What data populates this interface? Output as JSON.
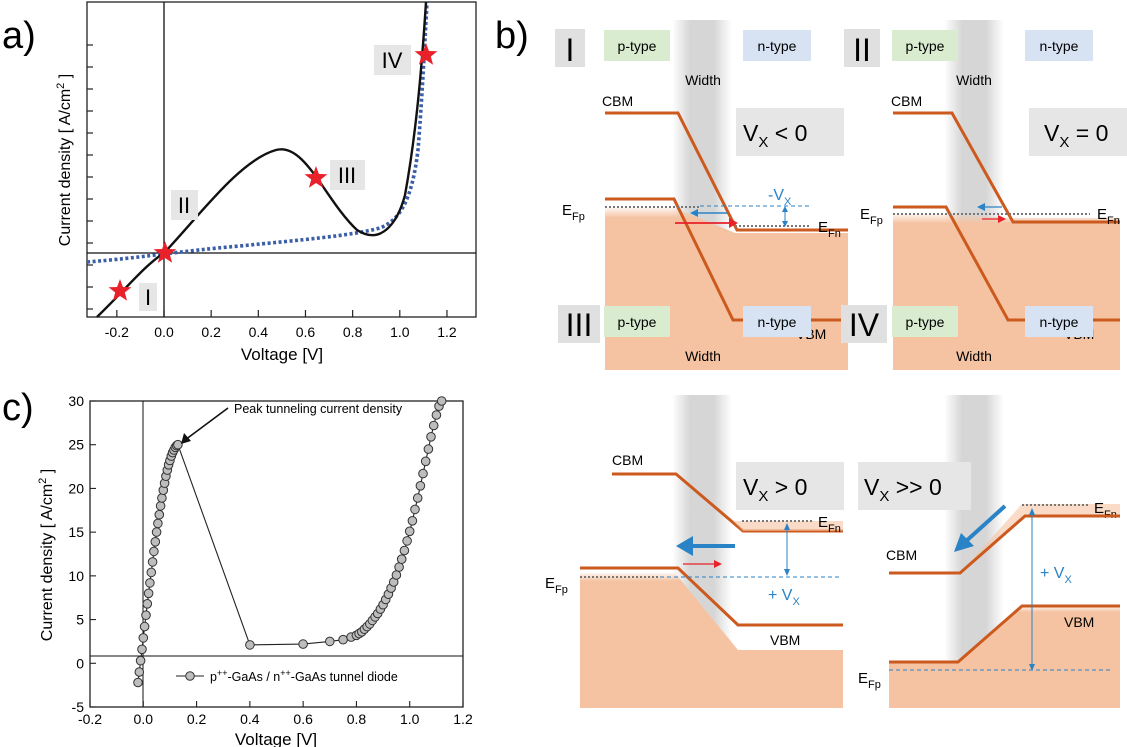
{
  "panel_letters": {
    "a": "a)",
    "b": "b)",
    "c": "c)"
  },
  "panel_a": {
    "ylabel": "Current density [ A/cm",
    "ylabel_sup": "2",
    "ylabel_end": " ]",
    "xlabel": "Voltage [V]",
    "xticks": [
      "-0.2",
      "0.0",
      "0.2",
      "0.4",
      "0.6",
      "0.8",
      "1.0",
      "1.2"
    ],
    "markers": [
      {
        "label": "I",
        "v": -0.17
      },
      {
        "label": "II",
        "v": 0.0
      },
      {
        "label": "III",
        "v": 0.58
      },
      {
        "label": "IV",
        "v": 1.0
      }
    ],
    "colors": {
      "curve": "#111111",
      "diode_curve": "#3b5ea8",
      "star": "#e8212a",
      "label_box": "#e6e6e6"
    }
  },
  "panel_c": {
    "ylabel": "Current density [ A/cm",
    "ylabel_sup": "2",
    "ylabel_end": " ]",
    "xlabel": "Voltage [V]",
    "annotation": "Peak tunneling current density",
    "legend": {
      "part1": "p",
      "sup1": "++",
      "part2": "-GaAs / n",
      "sup2": "++",
      "part3": "-GaAs tunnel diode"
    }
  },
  "chart_data": {
    "type": "scatter",
    "xlabel": "Voltage [V]",
    "ylabel": "Current density [ A/cm2 ]",
    "xlim": [
      -0.2,
      1.2
    ],
    "ylim": [
      -5,
      30
    ],
    "xticks": [
      "-0.2",
      "0.0",
      "0.2",
      "0.4",
      "0.6",
      "0.8",
      "1.0",
      "1.2"
    ],
    "yticks": [
      "-5",
      "0",
      "5",
      "10",
      "15",
      "20",
      "25",
      "30"
    ],
    "series": [
      {
        "name": "p++-GaAs / n++-GaAs tunnel diode",
        "x": [
          -0.02,
          -0.015,
          -0.01,
          -0.005,
          0.0,
          0.005,
          0.01,
          0.015,
          0.02,
          0.025,
          0.03,
          0.035,
          0.04,
          0.045,
          0.05,
          0.055,
          0.06,
          0.065,
          0.07,
          0.075,
          0.08,
          0.085,
          0.09,
          0.095,
          0.1,
          0.105,
          0.11,
          0.115,
          0.12,
          0.125,
          0.13,
          0.4,
          0.6,
          0.7,
          0.75,
          0.78,
          0.8,
          0.81,
          0.82,
          0.83,
          0.84,
          0.85,
          0.86,
          0.87,
          0.88,
          0.89,
          0.9,
          0.91,
          0.92,
          0.93,
          0.94,
          0.95,
          0.96,
          0.97,
          0.98,
          0.99,
          1.0,
          1.01,
          1.02,
          1.03,
          1.04,
          1.05,
          1.06,
          1.07,
          1.08,
          1.09,
          1.1,
          1.11,
          1.12
        ],
        "y": [
          -2.2,
          -1.0,
          0.3,
          1.6,
          2.9,
          4.2,
          5.5,
          6.8,
          8.0,
          9.2,
          10.4,
          11.6,
          12.8,
          13.9,
          15.0,
          16.0,
          17.0,
          18.0,
          18.9,
          19.8,
          20.6,
          21.4,
          22.1,
          22.7,
          23.2,
          23.7,
          24.1,
          24.4,
          24.7,
          24.9,
          25.0,
          2.1,
          2.2,
          2.5,
          2.7,
          3.0,
          3.2,
          3.4,
          3.6,
          3.9,
          4.2,
          4.5,
          4.9,
          5.3,
          5.7,
          6.2,
          6.7,
          7.3,
          7.9,
          8.6,
          9.3,
          10.1,
          11.0,
          11.9,
          12.9,
          14.0,
          15.1,
          16.3,
          17.6,
          18.9,
          20.3,
          21.7,
          23.1,
          24.5,
          25.9,
          27.2,
          28.4,
          29.4,
          30.0
        ]
      }
    ]
  },
  "panel_b": {
    "cells": [
      {
        "roman": "I",
        "ptype": "p-type",
        "ntype": "n-type",
        "width": "Width",
        "cbm": "CBM",
        "vbm": "VBM",
        "efp": "E",
        "efp_sub": "Fp",
        "efn": "E",
        "efn_sub": "Fn",
        "vx_main": "V",
        "vx_sub": "X",
        "vx_rel": " < 0",
        "delta_pre": "-V",
        "delta_sub": "X"
      },
      {
        "roman": "II",
        "ptype": "p-type",
        "ntype": "n-type",
        "width": "Width",
        "cbm": "CBM",
        "vbm": "VBM",
        "efp": "E",
        "efp_sub": "Fp",
        "efn": "E",
        "efn_sub": "Fn",
        "vx_main": "V",
        "vx_sub": "X",
        "vx_rel": " = 0"
      },
      {
        "roman": "III",
        "ptype": "p-type",
        "ntype": "n-type",
        "width": "Width",
        "cbm": "CBM",
        "vbm": "VBM",
        "efp": "E",
        "efp_sub": "Fp",
        "efn": "E",
        "efn_sub": "Fn",
        "vx_main": "V",
        "vx_sub": "X",
        "vx_rel": " > 0",
        "delta_pre": "+ V",
        "delta_sub": "X"
      },
      {
        "roman": "IV",
        "ptype": "p-type",
        "ntype": "n-type",
        "width": "Width",
        "cbm": "CBM",
        "vbm": "VBM",
        "efp": "E",
        "efp_sub": "Fp",
        "efn": "E",
        "efn_sub": "Fn",
        "vx_main": "V",
        "vx_sub": "X",
        "vx_rel": " >> 0",
        "delta_pre": "+ V",
        "delta_sub": "X"
      }
    ],
    "colors": {
      "band": "#cc5a1e",
      "fill": "#f5c3a2",
      "ptype_bg": "#d9ecd0",
      "ntype_bg": "#d7e2f2",
      "roman_bg": "#e0e0e0",
      "vx_bg": "#e6e6e6",
      "blue": "#2a83c6",
      "red": "#e8212a"
    }
  }
}
